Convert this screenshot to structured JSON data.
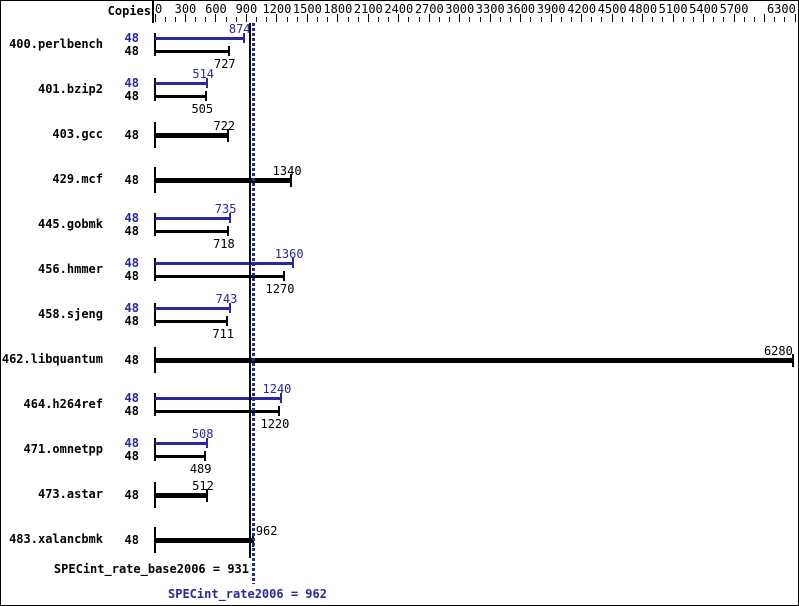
{
  "header": {
    "copies": "Copies"
  },
  "summary": {
    "base": "SPECint_rate_base2006 = 931",
    "peak": "SPECint_rate2006 = 962"
  },
  "colors": {
    "peak_blue": "#2828a0",
    "base_black": "#000000",
    "background": "#ffffff"
  },
  "chart_data": {
    "type": "bar",
    "orientation": "horizontal",
    "x_axis": {
      "min": 0,
      "max": 6300,
      "minor_tick_step": 100,
      "major_tick_step": 300,
      "tick_labels": [
        0,
        300,
        600,
        900,
        1200,
        1500,
        1800,
        2100,
        2400,
        2700,
        3000,
        3300,
        3600,
        3900,
        4200,
        4500,
        4800,
        5100,
        5400,
        5700,
        6300
      ],
      "omitted_tick_label": 6000
    },
    "copies_column_header": "Copies",
    "legend": "none (blue bar = peak result, black bar = base result, single black bar = base only)",
    "benchmarks": [
      {
        "name": "400.perlbench",
        "copies": 48,
        "peak": 874,
        "base": 727
      },
      {
        "name": "401.bzip2",
        "copies": 48,
        "peak": 514,
        "base": 505
      },
      {
        "name": "403.gcc",
        "copies": 48,
        "peak": null,
        "base": 722
      },
      {
        "name": "429.mcf",
        "copies": 48,
        "peak": null,
        "base": 1340
      },
      {
        "name": "445.gobmk",
        "copies": 48,
        "peak": 735,
        "base": 718
      },
      {
        "name": "456.hmmer",
        "copies": 48,
        "peak": 1360,
        "base": 1270
      },
      {
        "name": "458.sjeng",
        "copies": 48,
        "peak": 743,
        "base": 711
      },
      {
        "name": "462.libquantum",
        "copies": 48,
        "peak": null,
        "base": 6280
      },
      {
        "name": "464.h264ref",
        "copies": 48,
        "peak": 1240,
        "base": 1220
      },
      {
        "name": "471.omnetpp",
        "copies": 48,
        "peak": 508,
        "base": 489
      },
      {
        "name": "473.astar",
        "copies": 48,
        "peak": null,
        "base": 512
      },
      {
        "name": "483.xalancbmk",
        "copies": 48,
        "peak": null,
        "base": 962,
        "value_label_side": "right"
      }
    ],
    "reference_lines": [
      {
        "value": 931,
        "style": "solid",
        "color": "#000000",
        "label": "SPECint_rate_base2006 = 931"
      },
      {
        "value": 962,
        "style": "dotted",
        "color": "#2828a0",
        "label": "SPECint_rate2006 = 962"
      }
    ]
  }
}
